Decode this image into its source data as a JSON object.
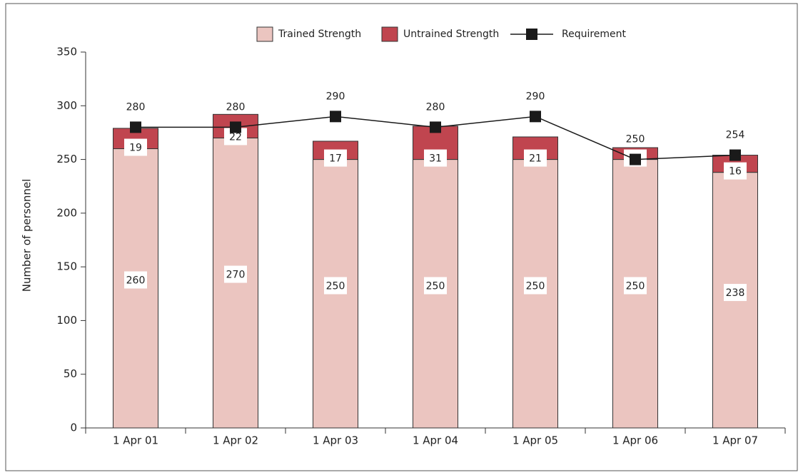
{
  "chart_data": {
    "type": "bar",
    "stacked": true,
    "y_label": "Number of personnel",
    "categories": [
      "1 Apr 01",
      "1 Apr 02",
      "1 Apr 03",
      "1 Apr 04",
      "1 Apr 05",
      "1 Apr 06",
      "1 Apr 07"
    ],
    "series": [
      {
        "name": "Trained Strength",
        "type": "bar",
        "color": "#ebc5c0",
        "values": [
          260,
          270,
          250,
          250,
          250,
          250,
          238
        ]
      },
      {
        "name": "Untrained Strength",
        "type": "bar",
        "color": "#c0454f",
        "values": [
          19,
          22,
          17,
          31,
          21,
          11,
          16
        ]
      },
      {
        "name": "Requirement",
        "type": "line",
        "color": "#1a1a1a",
        "values": [
          280,
          280,
          290,
          280,
          290,
          250,
          254
        ]
      }
    ],
    "ylim": [
      0,
      350
    ],
    "yticks": [
      0,
      50,
      100,
      150,
      200,
      250,
      300,
      350
    ],
    "legend": "top",
    "grid": false
  }
}
